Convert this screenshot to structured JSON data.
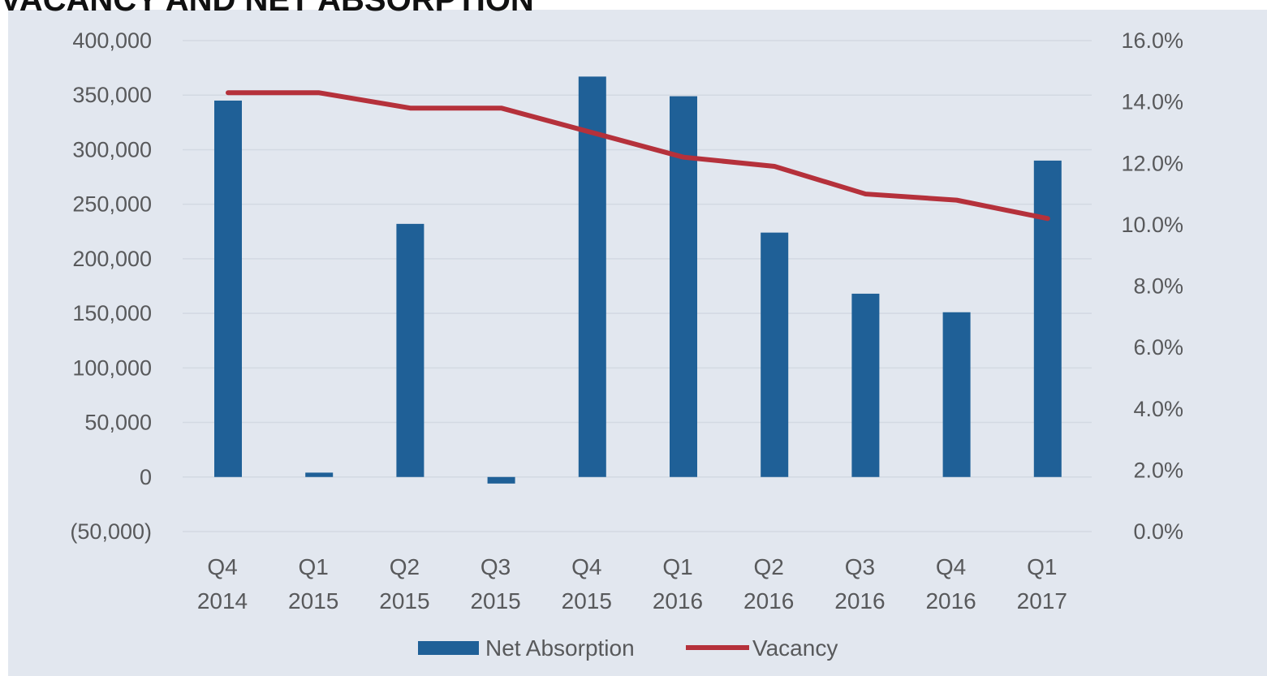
{
  "colors": {
    "bar": "#1f6097",
    "line": "#b5313b",
    "grid": "#d3d9e2",
    "text": "#58595b",
    "panel": "#e2e7ef"
  },
  "chart_data": {
    "type": "bar",
    "title": "VACANCY AND NET ABSORPTION",
    "categories": [
      [
        "Q4",
        "2014"
      ],
      [
        "Q1",
        "2015"
      ],
      [
        "Q2",
        "2015"
      ],
      [
        "Q3",
        "2015"
      ],
      [
        "Q4",
        "2015"
      ],
      [
        "Q1",
        "2016"
      ],
      [
        "Q2",
        "2016"
      ],
      [
        "Q3",
        "2016"
      ],
      [
        "Q4",
        "2016"
      ],
      [
        "Q1",
        "2017"
      ]
    ],
    "series": [
      {
        "name": "Net Absorption",
        "type": "bar",
        "axis": "left",
        "values": [
          345000,
          4000,
          232000,
          -6000,
          367000,
          349000,
          224000,
          168000,
          151000,
          290000
        ]
      },
      {
        "name": "Vacancy",
        "type": "line",
        "axis": "right",
        "values": [
          14.3,
          14.3,
          13.8,
          13.8,
          13.0,
          12.2,
          11.9,
          11.0,
          10.8,
          10.2
        ]
      }
    ],
    "yleft": {
      "lim": [
        -50000,
        400000
      ],
      "ticks": [
        -50000,
        0,
        50000,
        100000,
        150000,
        200000,
        250000,
        300000,
        350000,
        400000
      ],
      "tick_labels": [
        "(50,000)",
        "0",
        "50,000",
        "100,000",
        "150,000",
        "200,000",
        "250,000",
        "300,000",
        "350,000",
        "400,000"
      ]
    },
    "yright": {
      "lim": [
        0,
        16
      ],
      "ticks": [
        0,
        2,
        4,
        6,
        8,
        10,
        12,
        14,
        16
      ],
      "tick_labels": [
        "0.0%",
        "2.0%",
        "4.0%",
        "6.0%",
        "8.0%",
        "10.0%",
        "12.0%",
        "14.0%",
        "16.0%"
      ]
    },
    "grid": true,
    "legend": {
      "position": "bottom-center",
      "entries": [
        "Net Absorption",
        "Vacancy"
      ]
    }
  }
}
